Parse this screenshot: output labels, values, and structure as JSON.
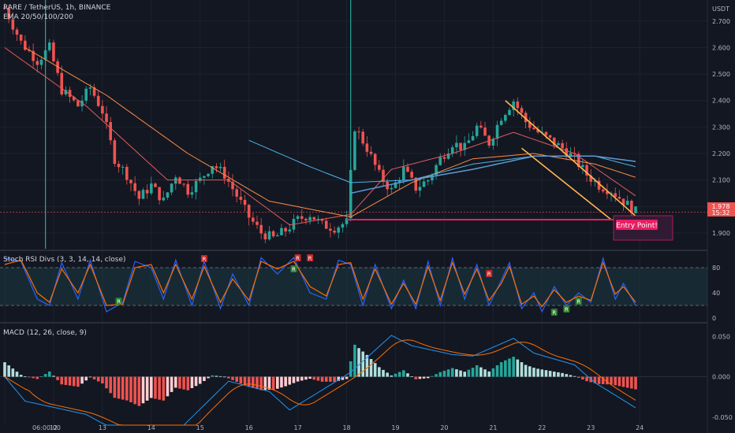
{
  "header": {
    "symbol_line": "RARE / TetherUS, 1h, BINANCE",
    "ema_line": "EMA 20/50/100/200",
    "currency": "USDT"
  },
  "indicators": {
    "stoch": "Stoch RSI Divs (3, 3, 14, 14, close)",
    "macd": "MACD (12, 26, close, 9)"
  },
  "last_price": {
    "value": "1.978",
    "countdown": "15:32"
  },
  "annotation": {
    "entry_label": "Entry Point!"
  },
  "colors": {
    "up": "#26a69a",
    "down": "#ef5350",
    "ema_fast": "#e05c5c",
    "ema_mid": "#ff8c42",
    "ema_slow": "#4db6e6",
    "ema_200": "#5b9bd5",
    "channel": "#ffb74d",
    "entry": "#e91e63",
    "stoch_k": "#2962ff",
    "stoch_d": "#ff6d00",
    "macd": "#2196f3",
    "signal": "#ff6d00"
  },
  "chart_data": [
    {
      "type": "candlestick",
      "title": "RARE / TetherUS, 1h, BINANCE",
      "x_ticks": [
        "06:00:00",
        "12",
        "13",
        "14",
        "15",
        "16",
        "17",
        "18",
        "19",
        "20",
        "21",
        "22",
        "23",
        "24"
      ],
      "y_ticks": [
        "2.700",
        "2.600",
        "2.500",
        "2.400",
        "2.300",
        "2.200",
        "2.100",
        "2.000",
        "1.900"
      ],
      "ylim": [
        1.84,
        2.78
      ],
      "price_path": [
        [
          0,
          2.75
        ],
        [
          4,
          2.62
        ],
        [
          8,
          2.55
        ],
        [
          11,
          2.6
        ],
        [
          14,
          2.44
        ],
        [
          18,
          2.38
        ],
        [
          21,
          2.45
        ],
        [
          24,
          2.36
        ],
        [
          27,
          2.18
        ],
        [
          30,
          2.12
        ],
        [
          33,
          2.03
        ],
        [
          36,
          2.08
        ],
        [
          39,
          2.02
        ],
        [
          42,
          2.12
        ],
        [
          45,
          2.06
        ],
        [
          48,
          2.1
        ],
        [
          51,
          2.16
        ],
        [
          54,
          2.12
        ],
        [
          57,
          2.04
        ],
        [
          60,
          1.96
        ],
        [
          63,
          1.9
        ],
        [
          66,
          1.88
        ],
        [
          69,
          1.91
        ],
        [
          72,
          1.95
        ],
        [
          75,
          1.97
        ],
        [
          78,
          1.93
        ],
        [
          81,
          1.92
        ],
        [
          84,
          1.94
        ],
        [
          86,
          2.3
        ],
        [
          89,
          2.22
        ],
        [
          92,
          2.12
        ],
        [
          95,
          2.06
        ],
        [
          98,
          2.14
        ],
        [
          101,
          2.07
        ],
        [
          104,
          2.1
        ],
        [
          107,
          2.18
        ],
        [
          110,
          2.24
        ],
        [
          113,
          2.22
        ],
        [
          116,
          2.3
        ],
        [
          119,
          2.24
        ],
        [
          122,
          2.34
        ],
        [
          125,
          2.4
        ],
        [
          128,
          2.32
        ],
        [
          131,
          2.28
        ],
        [
          134,
          2.25
        ],
        [
          137,
          2.22
        ],
        [
          140,
          2.18
        ],
        [
          143,
          2.12
        ],
        [
          146,
          2.08
        ],
        [
          149,
          2.06
        ],
        [
          152,
          2.02
        ],
        [
          155,
          1.98
        ]
      ],
      "ema_20": [
        [
          0,
          2.6
        ],
        [
          20,
          2.38
        ],
        [
          40,
          2.1
        ],
        [
          55,
          2.1
        ],
        [
          70,
          1.93
        ],
        [
          85,
          1.97
        ],
        [
          95,
          2.14
        ],
        [
          110,
          2.2
        ],
        [
          125,
          2.28
        ],
        [
          140,
          2.2
        ],
        [
          155,
          2.04
        ]
      ],
      "ema_50": [
        [
          5,
          2.6
        ],
        [
          25,
          2.42
        ],
        [
          45,
          2.2
        ],
        [
          65,
          2.02
        ],
        [
          85,
          1.96
        ],
        [
          100,
          2.09
        ],
        [
          115,
          2.18
        ],
        [
          130,
          2.2
        ],
        [
          145,
          2.16
        ],
        [
          155,
          2.11
        ]
      ],
      "ema_100": [
        [
          60,
          2.25
        ],
        [
          75,
          2.15
        ],
        [
          85,
          2.09
        ],
        [
          100,
          2.1
        ],
        [
          115,
          2.16
        ],
        [
          130,
          2.19
        ],
        [
          145,
          2.19
        ],
        [
          155,
          2.15
        ]
      ],
      "ema_200": [
        [
          85,
          2.05
        ],
        [
          100,
          2.1
        ],
        [
          115,
          2.14
        ],
        [
          130,
          2.19
        ],
        [
          145,
          2.19
        ],
        [
          155,
          2.17
        ]
      ],
      "channel_upper": [
        [
          123,
          2.4
        ],
        [
          156,
          1.95
        ]
      ],
      "channel_lower": [
        [
          127,
          2.22
        ],
        [
          149,
          1.95
        ]
      ],
      "entry_level": 1.95
    },
    {
      "type": "line",
      "title": "Stoch RSI Divs (3, 3, 14, 14, close)",
      "y_ticks": [
        "80",
        "40",
        "0"
      ],
      "ylim": [
        -5,
        105
      ],
      "bands": [
        80,
        20
      ],
      "k": [
        [
          0,
          95
        ],
        [
          4,
          90
        ],
        [
          8,
          30
        ],
        [
          11,
          20
        ],
        [
          14,
          88
        ],
        [
          18,
          30
        ],
        [
          21,
          92
        ],
        [
          25,
          10
        ],
        [
          29,
          25
        ],
        [
          32,
          90
        ],
        [
          36,
          80
        ],
        [
          39,
          30
        ],
        [
          42,
          92
        ],
        [
          46,
          20
        ],
        [
          49,
          90
        ],
        [
          53,
          15
        ],
        [
          56,
          70
        ],
        [
          60,
          20
        ],
        [
          63,
          96
        ],
        [
          67,
          70
        ],
        [
          71,
          96
        ],
        [
          75,
          40
        ],
        [
          79,
          30
        ],
        [
          82,
          92
        ],
        [
          85,
          85
        ],
        [
          88,
          20
        ],
        [
          91,
          85
        ],
        [
          95,
          15
        ],
        [
          98,
          60
        ],
        [
          101,
          15
        ],
        [
          104,
          90
        ],
        [
          107,
          20
        ],
        [
          110,
          95
        ],
        [
          113,
          30
        ],
        [
          116,
          85
        ],
        [
          119,
          20
        ],
        [
          122,
          60
        ],
        [
          124,
          88
        ],
        [
          127,
          15
        ],
        [
          130,
          40
        ],
        [
          132,
          10
        ],
        [
          135,
          50
        ],
        [
          138,
          20
        ],
        [
          141,
          40
        ],
        [
          144,
          25
        ],
        [
          147,
          95
        ],
        [
          150,
          30
        ],
        [
          152,
          55
        ],
        [
          155,
          20
        ]
      ],
      "d": [
        [
          0,
          85
        ],
        [
          4,
          92
        ],
        [
          8,
          40
        ],
        [
          11,
          25
        ],
        [
          14,
          78
        ],
        [
          18,
          40
        ],
        [
          21,
          85
        ],
        [
          25,
          20
        ],
        [
          29,
          22
        ],
        [
          32,
          80
        ],
        [
          36,
          85
        ],
        [
          39,
          40
        ],
        [
          42,
          85
        ],
        [
          46,
          30
        ],
        [
          49,
          82
        ],
        [
          53,
          25
        ],
        [
          56,
          62
        ],
        [
          60,
          28
        ],
        [
          63,
          90
        ],
        [
          67,
          78
        ],
        [
          71,
          90
        ],
        [
          75,
          50
        ],
        [
          79,
          35
        ],
        [
          82,
          85
        ],
        [
          85,
          88
        ],
        [
          88,
          30
        ],
        [
          91,
          78
        ],
        [
          95,
          22
        ],
        [
          98,
          55
        ],
        [
          101,
          22
        ],
        [
          104,
          82
        ],
        [
          107,
          28
        ],
        [
          110,
          88
        ],
        [
          113,
          38
        ],
        [
          116,
          78
        ],
        [
          119,
          28
        ],
        [
          122,
          55
        ],
        [
          124,
          82
        ],
        [
          127,
          22
        ],
        [
          130,
          35
        ],
        [
          132,
          18
        ],
        [
          135,
          45
        ],
        [
          138,
          25
        ],
        [
          141,
          35
        ],
        [
          144,
          28
        ],
        [
          147,
          88
        ],
        [
          150,
          38
        ],
        [
          152,
          50
        ],
        [
          155,
          25
        ]
      ],
      "signals": [
        "R",
        "R",
        "R",
        "R",
        "R",
        "R",
        "R",
        "R",
        "R"
      ]
    },
    {
      "type": "bar+line",
      "title": "MACD (12, 26, close, 9)",
      "y_ticks": [
        "0.050",
        "0.000",
        "-0.050"
      ],
      "ylim": [
        -0.06,
        0.065
      ]
    }
  ]
}
